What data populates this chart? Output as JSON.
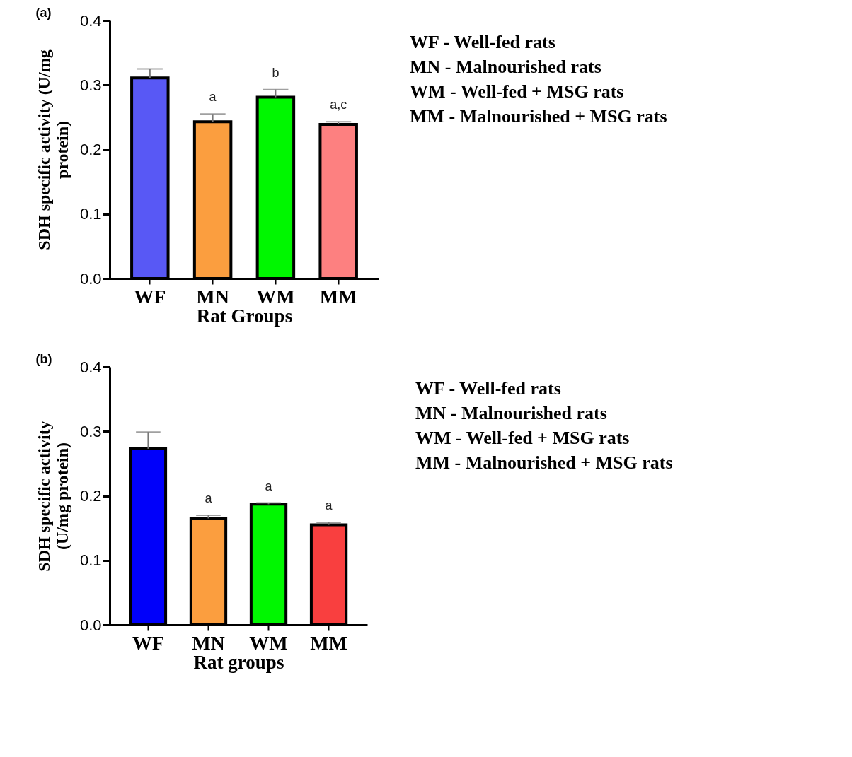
{
  "chart_data": [
    {
      "type": "bar",
      "title": "(a)",
      "xlabel": "Rat Groups",
      "ylabel": "SDH specific activity (U/mg protein)",
      "categories": [
        "WF",
        "MN",
        "WM",
        "MM"
      ],
      "values": [
        0.311,
        0.243,
        0.281,
        0.239
      ],
      "colors": [
        "#5858f5",
        "#fb9e3f",
        "#00f700",
        "#fd8080"
      ],
      "errors": [
        [
          0.311,
          0.325
        ],
        [
          0.243,
          0.255
        ],
        [
          0.281,
          0.293
        ],
        [
          0.239,
          0.243
        ]
      ],
      "ylim": [
        0,
        0.4
      ],
      "yticks": [
        {
          "value": 0,
          "label": "0.0"
        },
        0.1,
        0.2,
        0.3,
        0.4
      ],
      "grid": false,
      "legend": false,
      "value_labels": [
        null,
        "a",
        "b",
        "a,c"
      ],
      "annotations": [
        "WF - Well-fed rats",
        "MN - Malnourished rats",
        "WM - Well-fed + MSG rats",
        "MM - Malnourished + MSG rats"
      ]
    },
    {
      "type": "bar",
      "title": "(b)",
      "xlabel": "Rat groups",
      "ylabel": "SDH specific activity (U/mg protein)",
      "categories": [
        "WF",
        "MN",
        "WM",
        "MM"
      ],
      "values": [
        0.273,
        0.165,
        0.187,
        0.155
      ],
      "colors": [
        "#0000fa",
        "#fb9e3f",
        "#00f700",
        "#f93f3f"
      ],
      "errors": [
        [
          0.273,
          0.299
        ],
        [
          0.165,
          0.17
        ],
        [
          0.187,
          0.189
        ],
        [
          0.155,
          0.159
        ]
      ],
      "ylim": [
        0,
        0.4
      ],
      "yticks": [
        {
          "value": 0,
          "label": "0.0"
        },
        0.1,
        0.2,
        0.3,
        0.4
      ],
      "grid": false,
      "legend": false,
      "value_labels": [
        null,
        "a",
        "a",
        "a"
      ],
      "annotations": [
        "WF - Well-fed rats",
        "MN - Malnourished rats",
        "WM - Well-fed + MSG rats",
        "MM - Malnourished + MSG  rats"
      ]
    }
  ]
}
